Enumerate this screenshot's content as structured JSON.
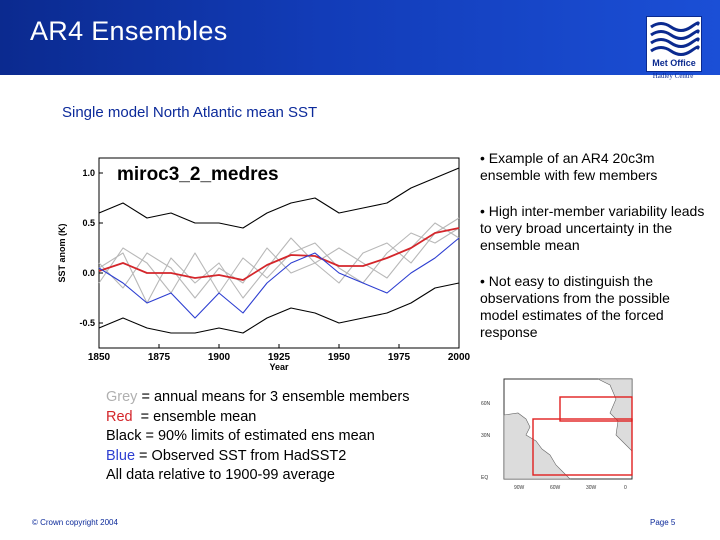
{
  "header": {
    "title": "AR4 Ensembles",
    "logo_text": "Met Office",
    "logo_subtext": "Hadley Centre"
  },
  "subtitle": "Single model North Atlantic mean SST",
  "bullets": [
    "• Example of an AR4 20c3m ensemble with few members",
    "• High inter-member variability leads to very broad uncertainty in the ensemble mean",
    "• Not easy to distinguish the observations from the possible model estimates of the forced response"
  ],
  "legend": [
    {
      "key": "Grey",
      "text": " = annual means for 3 ensemble members",
      "color": "#b0b0b0"
    },
    {
      "key": "Red",
      "text": "  = ensemble mean",
      "color": "#d4262b"
    },
    {
      "key": "Black",
      "text": " = 90% limits of estimated ens mean",
      "color": "#000000"
    },
    {
      "key": "Blue",
      "text": " = Observed SST from HadSST2",
      "color": "#2d3ed1"
    },
    {
      "key": "",
      "text": "All data relative to 1900-99 average",
      "color": "#000000"
    }
  ],
  "map": {
    "lat_labels": [
      "60N",
      "30N",
      "EQ"
    ],
    "lon_labels": [
      "90W",
      "60W",
      "30W",
      "0"
    ],
    "box_color": "#e0201f"
  },
  "footer": {
    "copyright": "© Crown copyright 2004",
    "page": "Page 5"
  },
  "chart_data": {
    "type": "line",
    "title": "miroc3_2_medres",
    "xlabel": "Year",
    "ylabel": "SST anom (K)",
    "xlim": [
      1850,
      2000
    ],
    "ylim": [
      -0.75,
      1.15
    ],
    "xticks": [
      1850,
      1875,
      1900,
      1925,
      1950,
      1975,
      2000
    ],
    "yticks": [
      1.0,
      0.5,
      0.0,
      -0.5
    ],
    "ytick_labels": [
      "1.0",
      "0.5",
      "0.0",
      "-0.5"
    ],
    "x": [
      1850,
      1860,
      1870,
      1880,
      1890,
      1900,
      1910,
      1920,
      1930,
      1940,
      1950,
      1960,
      1970,
      1980,
      1990,
      2000
    ],
    "series": [
      {
        "role": "member",
        "color": "#b8b8b8",
        "values": [
          0.05,
          0.2,
          -0.3,
          0.15,
          -0.1,
          0.1,
          -0.25,
          0.05,
          0.35,
          0.1,
          -0.1,
          0.2,
          0.3,
          0.1,
          0.4,
          0.55
        ]
      },
      {
        "role": "member",
        "color": "#b8b8b8",
        "values": [
          -0.1,
          0.25,
          0.1,
          -0.2,
          0.2,
          -0.2,
          0.15,
          -0.05,
          0.2,
          0.3,
          0.05,
          -0.1,
          0.2,
          0.4,
          0.3,
          0.45
        ]
      },
      {
        "role": "member",
        "color": "#b8b8b8",
        "values": [
          0.1,
          -0.15,
          0.2,
          0.05,
          -0.25,
          0.05,
          -0.1,
          0.25,
          0.0,
          0.1,
          0.25,
          0.1,
          -0.05,
          0.25,
          0.5,
          0.35
        ]
      },
      {
        "role": "ensemble mean",
        "color": "#d4262b",
        "values": [
          0.02,
          0.1,
          0.0,
          0.0,
          -0.05,
          -0.02,
          -0.07,
          0.08,
          0.18,
          0.17,
          0.07,
          0.07,
          0.15,
          0.25,
          0.4,
          0.45
        ]
      },
      {
        "role": "upper 90% limit",
        "color": "#000000",
        "values": [
          0.6,
          0.7,
          0.55,
          0.6,
          0.5,
          0.5,
          0.45,
          0.6,
          0.7,
          0.75,
          0.6,
          0.65,
          0.7,
          0.85,
          0.95,
          1.05
        ]
      },
      {
        "role": "lower 90% limit",
        "color": "#000000",
        "values": [
          -0.55,
          -0.45,
          -0.55,
          -0.6,
          -0.6,
          -0.55,
          -0.6,
          -0.45,
          -0.35,
          -0.4,
          -0.5,
          -0.45,
          -0.4,
          -0.3,
          -0.15,
          -0.1
        ]
      },
      {
        "role": "observed",
        "color": "#2d3ed1",
        "values": [
          0.05,
          -0.1,
          -0.3,
          -0.2,
          -0.45,
          -0.2,
          -0.4,
          -0.1,
          0.1,
          0.2,
          0.0,
          -0.1,
          -0.2,
          0.0,
          0.15,
          0.35
        ]
      }
    ]
  }
}
